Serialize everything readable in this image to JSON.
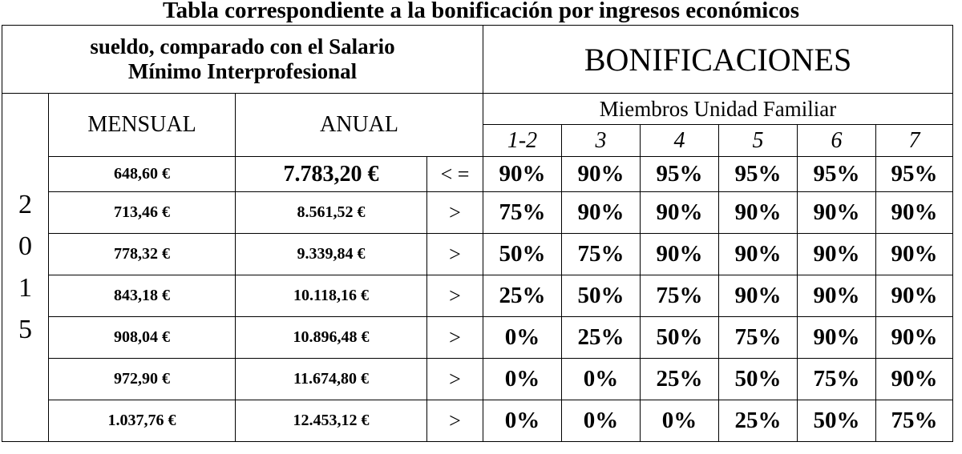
{
  "title": "Tabla correspondiente a la bonificación por ingresos económicos",
  "header": {
    "left_line1": "sueldo, comparado con el Salario",
    "left_line2": "Mínimo Interprofesional",
    "bonificaciones": "BONIFICACIONES",
    "miembros": "Miembros Unidad Familiar",
    "mensual": "MENSUAL",
    "anual": "ANUAL",
    "member_counts": [
      "1-2",
      "3",
      "4",
      "5",
      "6",
      "7"
    ]
  },
  "year_digits": [
    "2",
    "0",
    "1",
    "5"
  ],
  "rows": [
    {
      "mensual": "648,60 €",
      "anual": "7.783,20 €",
      "cmp": "< =",
      "pct": [
        "90%",
        "90%",
        "95%",
        "95%",
        "95%",
        "95%"
      ]
    },
    {
      "mensual": "713,46 €",
      "anual": "8.561,52 €",
      "cmp": ">",
      "pct": [
        "75%",
        "90%",
        "90%",
        "90%",
        "90%",
        "90%"
      ]
    },
    {
      "mensual": "778,32 €",
      "anual": "9.339,84 €",
      "cmp": ">",
      "pct": [
        "50%",
        "75%",
        "90%",
        "90%",
        "90%",
        "90%"
      ]
    },
    {
      "mensual": "843,18 €",
      "anual": "10.118,16 €",
      "cmp": ">",
      "pct": [
        "25%",
        "50%",
        "75%",
        "90%",
        "90%",
        "90%"
      ]
    },
    {
      "mensual": "908,04 €",
      "anual": "10.896,48 €",
      "cmp": ">",
      "pct": [
        "0%",
        "25%",
        "50%",
        "75%",
        "90%",
        "90%"
      ]
    },
    {
      "mensual": "972,90 €",
      "anual": "11.674,80 €",
      "cmp": ">",
      "pct": [
        "0%",
        "0%",
        "25%",
        "50%",
        "75%",
        "90%"
      ]
    },
    {
      "mensual": "1.037,76 €",
      "anual": "12.453,12 €",
      "cmp": ">",
      "pct": [
        "0%",
        "0%",
        "0%",
        "25%",
        "50%",
        "75%"
      ]
    }
  ]
}
